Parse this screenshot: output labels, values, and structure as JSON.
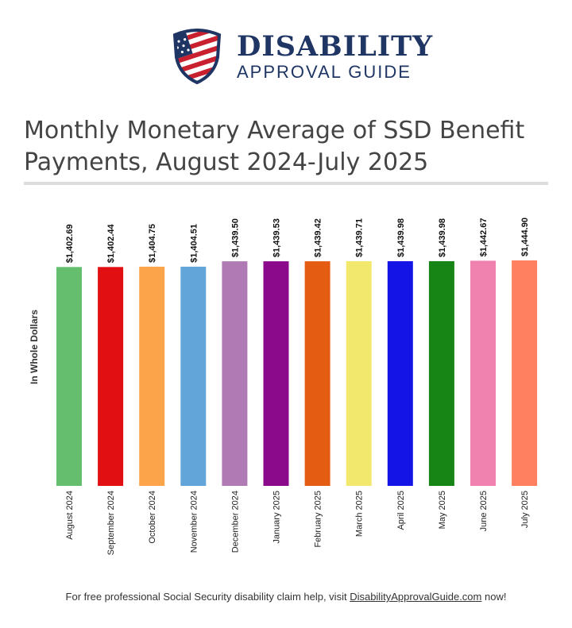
{
  "logo": {
    "line1": "DISABILITY",
    "line2": "APPROVAL GUIDE",
    "icon": "us-flag-shield-icon"
  },
  "footer": {
    "text_before": "For free professional Social Security disability claim help, visit ",
    "link_text": "DisabilityApprovalGuide.com",
    "text_after": " now!"
  },
  "chart_data": {
    "type": "bar",
    "title": "Monthly Monetary Average of SSD Benefit Payments, August 2024-July 2025",
    "xlabel": "",
    "ylabel": "In Whole Dollars",
    "ylim": [
      0,
      1444.9
    ],
    "grid": false,
    "categories": [
      "August 2024",
      "September 2024",
      "October 2024",
      "November 2024",
      "December 2024",
      "January 2025",
      "February 2025",
      "March 2025",
      "April 2025",
      "May 2025",
      "June 2025",
      "July 2025"
    ],
    "values": [
      1402.69,
      1402.44,
      1404.75,
      1404.51,
      1439.5,
      1439.53,
      1439.42,
      1439.71,
      1439.98,
      1439.98,
      1442.67,
      1444.9
    ],
    "labels": [
      "$1,402.69",
      "$1,402.44",
      "$1,404.75",
      "$1,404.51",
      "$1,439.50",
      "$1,439.53",
      "$1,439.42",
      "$1,439.71",
      "$1,439.98",
      "$1,439.98",
      "$1,442.67",
      "$1,444.90"
    ],
    "colors": [
      "#65be6e",
      "#e10f11",
      "#fca449",
      "#62a6d9",
      "#b07ab5",
      "#8a0a8b",
      "#e45c12",
      "#f2e86d",
      "#1414e6",
      "#168516",
      "#f082b0",
      "#ff7f61"
    ]
  }
}
